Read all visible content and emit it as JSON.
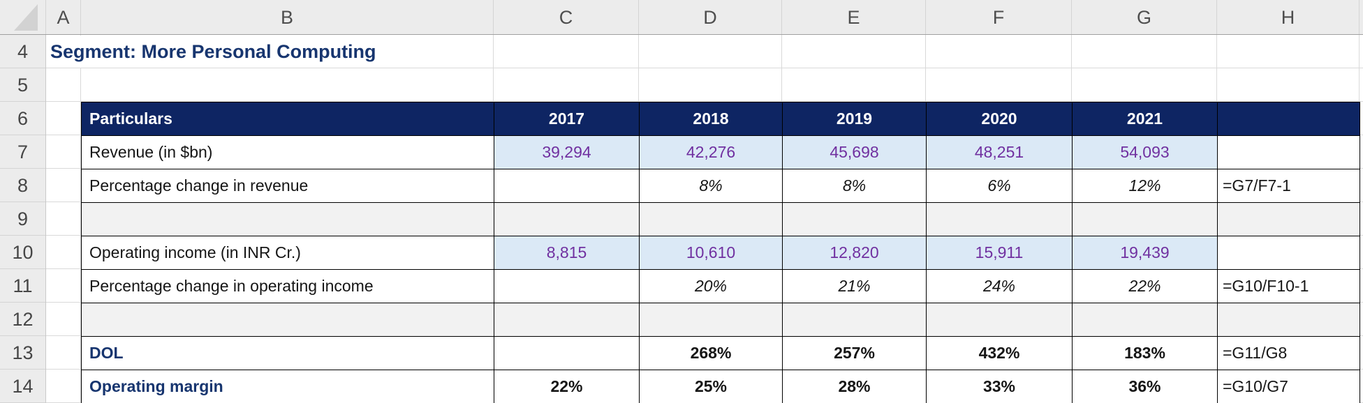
{
  "sheet": {
    "title_cell": {
      "ref": "A4",
      "text": "Segment: More Personal Computing"
    },
    "column_headers": [
      "A",
      "B",
      "C",
      "D",
      "E",
      "F",
      "G",
      "H"
    ],
    "row_headers": [
      "4",
      "5",
      "6",
      "7",
      "8",
      "9",
      "10",
      "11",
      "12",
      "13",
      "14"
    ],
    "table": {
      "header": {
        "particulars_label": "Particulars",
        "years": [
          "2017",
          "2018",
          "2019",
          "2020",
          "2021"
        ],
        "trailing_blank": ""
      },
      "rows": [
        {
          "row": "7",
          "kind": "input",
          "label": "Revenue (in $bn)",
          "cells": [
            "39,294",
            "42,276",
            "45,698",
            "48,251",
            "54,093"
          ],
          "formula": ""
        },
        {
          "row": "8",
          "kind": "pct",
          "label": "Percentage change in revenue",
          "cells": [
            "",
            "8%",
            "8%",
            "6%",
            "12%"
          ],
          "formula": "=G7/F7-1"
        },
        {
          "row": "9",
          "kind": "spacer",
          "label": "",
          "cells": [
            "",
            "",
            "",
            "",
            ""
          ],
          "formula": ""
        },
        {
          "row": "10",
          "kind": "input",
          "label": "Operating income (in INR Cr.)",
          "cells": [
            "8,815",
            "10,610",
            "12,820",
            "15,911",
            "19,439"
          ],
          "formula": ""
        },
        {
          "row": "11",
          "kind": "pct",
          "label": "Percentage change in operating income",
          "cells": [
            "",
            "20%",
            "21%",
            "24%",
            "22%"
          ],
          "formula": "=G10/F10-1"
        },
        {
          "row": "12",
          "kind": "spacer",
          "label": "",
          "cells": [
            "",
            "",
            "",
            "",
            ""
          ],
          "formula": ""
        },
        {
          "row": "13",
          "kind": "result",
          "label": "DOL",
          "cells": [
            "",
            "268%",
            "257%",
            "432%",
            "183%"
          ],
          "formula": "=G11/G8"
        },
        {
          "row": "14",
          "kind": "result",
          "label": "Operating margin",
          "cells": [
            "22%",
            "25%",
            "28%",
            "33%",
            "36%"
          ],
          "formula": "=G10/G7"
        }
      ]
    },
    "colors": {
      "header_fill": "#0e2563",
      "header_text": "#ffffff",
      "input_fill": "#dbe9f6",
      "input_text": "#7030a0",
      "accent_text": "#17356f",
      "spacer_fill": "#f2f2f2",
      "grid_line": "#d9d9d9",
      "cell_border": "#000000"
    }
  }
}
